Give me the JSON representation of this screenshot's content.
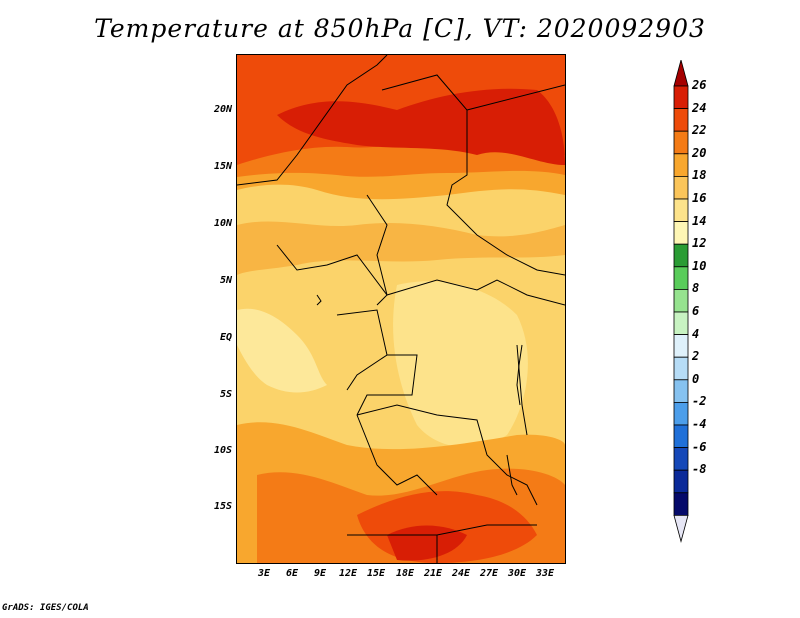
{
  "title": "Temperature at 850hPa [C], VT: 2020092903",
  "credit": "GrADS: IGES/COLA",
  "y_ticks": [
    "20N",
    "15N",
    "10N",
    "5N",
    "EQ",
    "5S",
    "10S",
    "15S"
  ],
  "x_ticks": [
    "3E",
    "6E",
    "9E",
    "12E",
    "15E",
    "18E",
    "21E",
    "24E",
    "27E",
    "30E",
    "33E"
  ],
  "colorbar": {
    "labels": [
      "26",
      "24",
      "22",
      "20",
      "18",
      "16",
      "14",
      "12",
      "10",
      "8",
      "6",
      "4",
      "2",
      "0",
      "-2",
      "-4",
      "-6",
      "-8"
    ],
    "colors": [
      "#a50000",
      "#d81e05",
      "#ee4b0a",
      "#f47b16",
      "#f8a72e",
      "#fbc55a",
      "#fde38b",
      "#fef6b5",
      "#2a9c34",
      "#59cc5a",
      "#96e38f",
      "#c8f3c2",
      "#dff1fb",
      "#b6dcf6",
      "#86c2f0",
      "#4c9eea",
      "#2070d8",
      "#1548b8",
      "#0b2a99",
      "#050a6a",
      "#e6e6f5"
    ]
  }
}
